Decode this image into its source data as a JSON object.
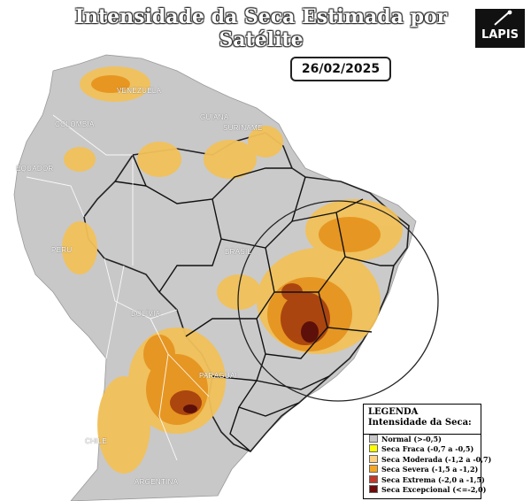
{
  "title": "Intensidade da Seca Estimada por Satélite",
  "date": "26/02/2025",
  "logo_text": "LAPIS",
  "countries": [
    "VENEZUELA",
    "COLÔMBIA",
    "EQUADOR",
    "PERU",
    "BOLÍVIA",
    "PARAGUAI",
    "CHILE",
    "ARGENTINA",
    "BRASIL",
    "GUIANA",
    "SURINAME"
  ],
  "legend": {
    "title": "LEGENDA",
    "subtitle": "Intensidade da Seca:",
    "items": [
      {
        "label": "Normal (>-0,5)",
        "color": "#c8c8c8"
      },
      {
        "label": "Seca Fraca (-0,7 a -0,5)",
        "color": "#ffff00"
      },
      {
        "label": "Seca Moderada (-1,2 a -0,7)",
        "color": "#fcd283"
      },
      {
        "label": "Seca Severa (-1,5 a -1,2)",
        "color": "#f5a623"
      },
      {
        "label": "Seca Extrema (-2,0 a -1,5)",
        "color": "#c0392b"
      },
      {
        "label": "Seca Excepcional (<=-2,0)",
        "color": "#6e0b0b"
      }
    ]
  },
  "colors": {
    "ocean": "#ffffff",
    "land": "#c8c8c8",
    "moderate": "#f2c15a",
    "severe": "#e6941f",
    "extreme": "#a8410f",
    "exceptional": "#5c1009"
  }
}
